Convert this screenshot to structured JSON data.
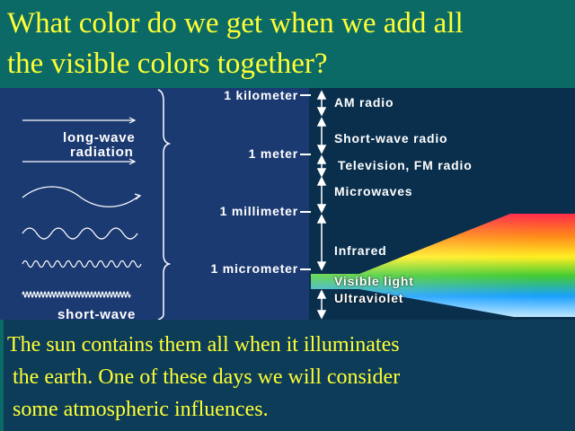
{
  "title": {
    "line1": "What color do we get when we add all",
    "line2": "the visible colors together?"
  },
  "figure": {
    "left_labels": {
      "long_wave_1": "long-wave",
      "long_wave_2": "radiation",
      "short_wave": "short-wave"
    },
    "scale_marks": [
      "1 kilometer",
      "1 meter",
      "1 millimeter",
      "1 micrometer"
    ],
    "bands": [
      "AM radio",
      "Short-wave radio",
      "Television, FM radio",
      "Microwaves",
      "Infrared",
      "Visible light",
      "Ultraviolet"
    ],
    "colors": {
      "panel": "#1c3a72",
      "band_column": "#0a2f4c",
      "spectrum": [
        "#ff2a4a",
        "#ff8a1a",
        "#ffee22",
        "#44cc33",
        "#1aa0ff",
        "#c0e8ff"
      ]
    }
  },
  "caption": {
    "line1": "The sun contains them all when it illuminates",
    "line2": " the earth. One of these days we will consider",
    "line3": " some atmospheric influences."
  }
}
